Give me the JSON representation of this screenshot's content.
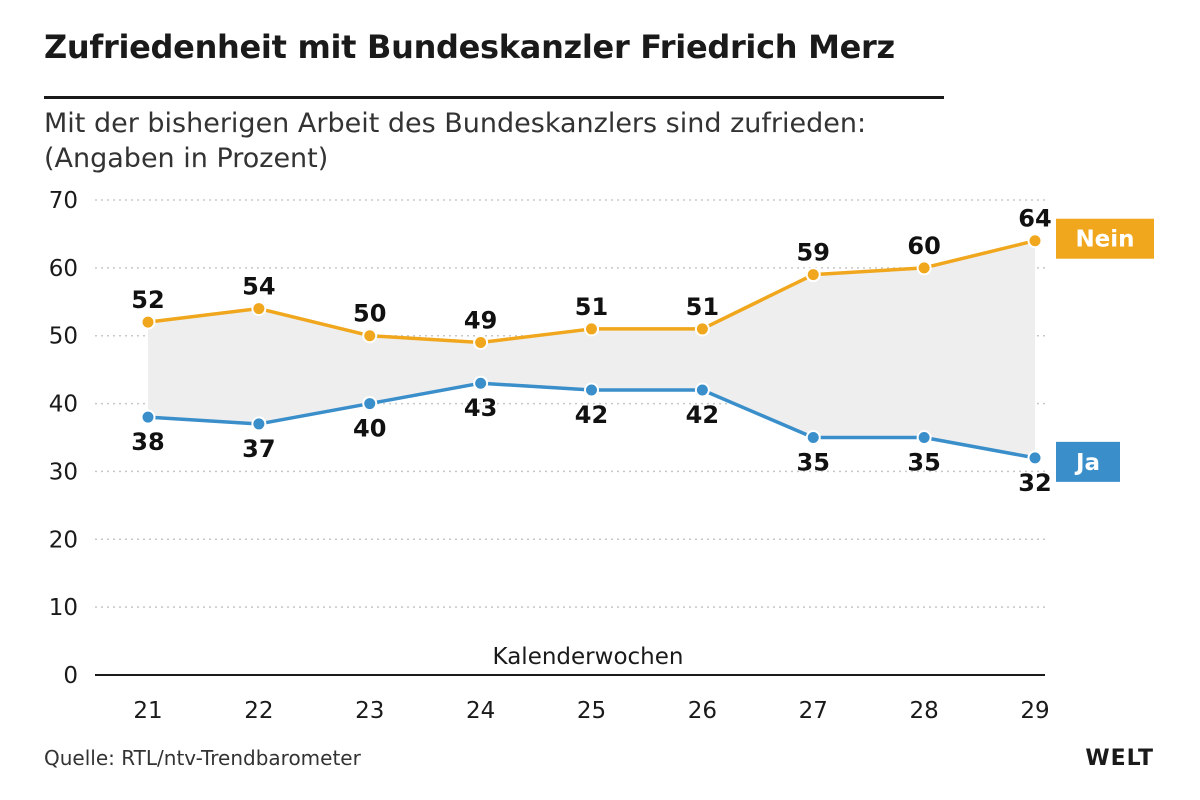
{
  "header": {
    "title": "Zufriedenheit mit Bundeskanzler Friedrich Merz",
    "subtitle_line1": "Mit der bisherigen Arbeit des Bundeskanzlers sind zufrieden:",
    "subtitle_line2": "(Angaben in Prozent)"
  },
  "footer": {
    "source": "Quelle: RTL/ntv-Trendbarometer",
    "logo": "WELT"
  },
  "colors": {
    "nein": "#f0a71d",
    "ja": "#3a8fcb",
    "band": "#eeeeee",
    "grid": "#c8c8c8"
  },
  "chart_data": {
    "type": "line",
    "title": "Zufriedenheit mit Bundeskanzler Friedrich Merz",
    "xlabel": "Kalenderwochen",
    "ylabel": "",
    "categories": [
      "21",
      "22",
      "23",
      "24",
      "25",
      "26",
      "27",
      "28",
      "29"
    ],
    "ylim": [
      0,
      70
    ],
    "yticks": [
      0,
      10,
      20,
      30,
      40,
      50,
      60,
      70
    ],
    "grid": true,
    "series": [
      {
        "name": "Nein",
        "color": "#f0a71d",
        "label_position": "above",
        "values": [
          52,
          54,
          50,
          49,
          51,
          51,
          59,
          60,
          64
        ]
      },
      {
        "name": "Ja",
        "color": "#3a8fcb",
        "label_position": "below",
        "values": [
          38,
          37,
          40,
          43,
          42,
          42,
          35,
          35,
          32
        ]
      }
    ]
  }
}
